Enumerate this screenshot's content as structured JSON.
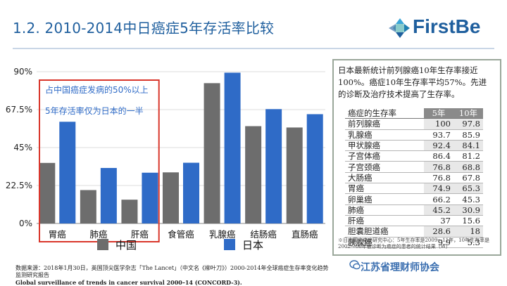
{
  "header": {
    "title": "1.2. 2010-2014中日癌症5年存活率比较",
    "logo_text": "FirstBe"
  },
  "chart_data": {
    "type": "bar",
    "categories": [
      "胃癌",
      "肺癌",
      "肝癌",
      "食管癌",
      "乳腺癌",
      "结肠癌",
      "直肠癌"
    ],
    "series": [
      {
        "name": "中国",
        "values": [
          35.9,
          19.8,
          14.1,
          30.3,
          83.2,
          57.7,
          56.9
        ],
        "color": "#6d6d6d"
      },
      {
        "name": "日本",
        "values": [
          60.3,
          32.9,
          30.1,
          36.0,
          89.4,
          67.8,
          64.8
        ],
        "color": "#2f6bc7"
      }
    ],
    "ylim": [
      0,
      90
    ],
    "yticks": [
      "0%",
      "22.5%",
      "45%",
      "67.5%",
      "90%"
    ],
    "ytick_values": [
      0,
      22.5,
      45,
      67.5,
      90
    ],
    "grid": true,
    "legend_position": "bottom",
    "annotations": [
      "占中国癌症发病的50%以上",
      "5年存活率仅为日本的一半"
    ]
  },
  "panel": {
    "note": "日本最新统计前列腺癌10年生存率接近100%。癌症10年生存率平均57%。先进的诊断及治疗技术提高了生存率。",
    "table_header": {
      "name": "癌症的生存率",
      "col5": "5年",
      "col10": "10年"
    },
    "rows": [
      {
        "name": "前列腺癌",
        "y5": "100",
        "y10": "97.8"
      },
      {
        "name": "乳腺癌",
        "y5": "93.7",
        "y10": "85.9"
      },
      {
        "name": "甲状腺癌",
        "y5": "92.4",
        "y10": "84.1"
      },
      {
        "name": "子宫体癌",
        "y5": "86.4",
        "y10": "81.2"
      },
      {
        "name": "子宫颈癌",
        "y5": "76.8",
        "y10": "68.8"
      },
      {
        "name": "大肠癌",
        "y5": "76.8",
        "y10": "67.8"
      },
      {
        "name": "胃癌",
        "y5": "74.9",
        "y10": "65.3"
      },
      {
        "name": "卵巢癌",
        "y5": "66.2",
        "y10": "45.3"
      },
      {
        "name": "肺癌",
        "y5": "45.2",
        "y10": "30.9"
      },
      {
        "name": "肝癌",
        "y5": "37",
        "y10": "15.6"
      },
      {
        "name": "胆囊胆道癌",
        "y5": "28.6",
        "y10": "18"
      },
      {
        "name": "胰腺癌",
        "y5": "9.9",
        "y10": "5.3"
      }
    ],
    "footnote": "※日本国立癌症研究中心：5年生存率是2009～11年，10年生存率是2002～06年被诊断为癌症的患者的统计结果（W）"
  },
  "source": {
    "line1": "数据来源：2018年1月30日，英国顶尖医学杂志「The Lancet」（中文名《柳叶刀》）2000-2014年全球癌症生存率变化趋势监测研究报告",
    "line2": "Global surveillance of trends in cancer survival 2000–14 (CONCORD-3)."
  },
  "watermark": "江苏省理财师协会"
}
